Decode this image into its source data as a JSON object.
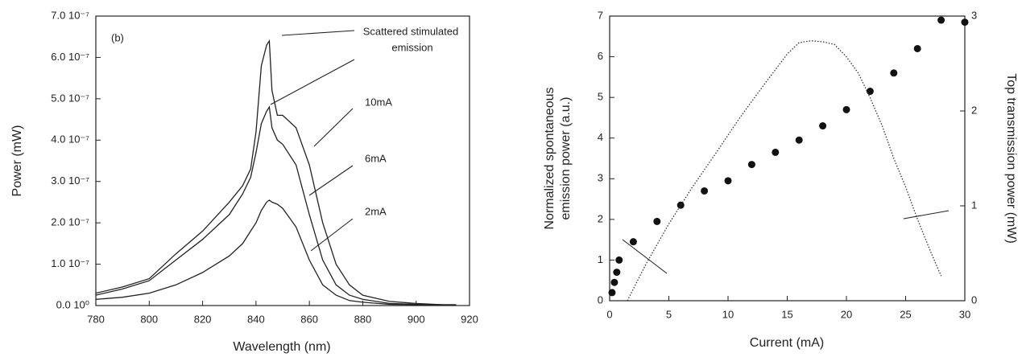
{
  "chart_data": [
    {
      "type": "line",
      "xlabel": "Wavelength (nm)",
      "ylabel": "Power (mW)",
      "annotations": [
        "(b)",
        "Scattered stimulated",
        "emission"
      ],
      "xlim": [
        780,
        920
      ],
      "xticks": [
        780,
        800,
        820,
        840,
        860,
        880,
        900,
        920
      ],
      "ylim": [
        0,
        7e-07
      ],
      "yticks": [
        {
          "value": 0,
          "label": "0.0 10⁰"
        },
        {
          "value": 1e-07,
          "label": "1.0 10⁻⁷"
        },
        {
          "value": 2e-07,
          "label": "2.0 10⁻⁷"
        },
        {
          "value": 3e-07,
          "label": "3.0 10⁻⁷"
        },
        {
          "value": 4e-07,
          "label": "4.0 10⁻⁷"
        },
        {
          "value": 5e-07,
          "label": "5.0 10⁻⁷"
        },
        {
          "value": 6e-07,
          "label": "6.0 10⁻⁷"
        },
        {
          "value": 7e-07,
          "label": "7.0 10⁻⁷"
        }
      ],
      "x": [
        780,
        790,
        800,
        810,
        820,
        830,
        835,
        838,
        840,
        842,
        844,
        845,
        846,
        848,
        850,
        855,
        860,
        865,
        870,
        875,
        880,
        890,
        900,
        910,
        915
      ],
      "series": [
        {
          "name": "10mA",
          "color": "#222222",
          "values": [
            3e-08,
            4.5e-08,
            6.5e-08,
            1.25e-07,
            1.8e-07,
            2.5e-07,
            2.9e-07,
            3.3e-07,
            4.2e-07,
            5.8e-07,
            6.3e-07,
            6.4e-07,
            5.2e-07,
            4.6e-07,
            4.6e-07,
            4.3e-07,
            3.4e-07,
            2e-07,
            1e-07,
            5e-08,
            2.5e-08,
            1e-08,
            5e-09,
            2e-09,
            2e-09
          ]
        },
        {
          "name": "6mA",
          "color": "#222222",
          "values": [
            2.5e-08,
            4e-08,
            6e-08,
            1.1e-07,
            1.6e-07,
            2.2e-07,
            2.7e-07,
            3.1e-07,
            3.7e-07,
            4.4e-07,
            4.7e-07,
            4.8e-07,
            4.3e-07,
            4e-07,
            3.9e-07,
            3.4e-07,
            2.2e-07,
            1.1e-07,
            5e-08,
            2.5e-08,
            1.5e-08,
            5e-09,
            3e-09,
            2e-09,
            2e-09
          ]
        },
        {
          "name": "2mA",
          "color": "#222222",
          "values": [
            1.5e-08,
            2e-08,
            3e-08,
            5e-08,
            8e-08,
            1.2e-07,
            1.5e-07,
            1.8e-07,
            2e-07,
            2.3e-07,
            2.5e-07,
            2.55e-07,
            2.5e-07,
            2.45e-07,
            2.35e-07,
            1.9e-07,
            1.1e-07,
            5e-08,
            2.5e-08,
            1.2e-08,
            8e-09,
            3e-09,
            2e-09,
            1e-09,
            1e-09
          ]
        }
      ]
    },
    {
      "type": "scatter",
      "xlabel": "Current (mA)",
      "ylabel": [
        "Normalized spontaneous",
        "emission power (a.u.)"
      ],
      "y2label": "Top transmission power (mW)",
      "xlim": [
        0,
        30
      ],
      "xticks": [
        0,
        5,
        10,
        15,
        20,
        25,
        30
      ],
      "ylim": [
        0,
        7
      ],
      "yticks": [
        0,
        1,
        2,
        3,
        4,
        5,
        6,
        7
      ],
      "y2lim": [
        0,
        3
      ],
      "y2ticks": [
        0,
        1,
        2,
        3
      ],
      "series": [
        {
          "color": "#111111",
          "x": [
            0.2,
            0.4,
            0.6,
            0.8,
            2,
            4,
            6,
            8,
            10,
            12,
            14,
            16,
            18,
            20,
            22,
            24,
            26,
            28,
            30
          ],
          "values": [
            0.2,
            0.45,
            0.7,
            1.0,
            1.45,
            1.95,
            2.35,
            2.7,
            2.95,
            3.35,
            3.65,
            3.95,
            4.3,
            4.7,
            5.15,
            5.6,
            6.2,
            6.9,
            6.85
          ]
        },
        {
          "type": "line",
          "axis": "y2",
          "linestyle": "dotted",
          "color": "#333333",
          "x": [
            1.5,
            3,
            5,
            7,
            9,
            11,
            13,
            15,
            16,
            17,
            18,
            19,
            20,
            21,
            22,
            23,
            24,
            25,
            26,
            27,
            28
          ],
          "values": [
            0,
            0.37,
            0.81,
            1.2,
            1.56,
            1.93,
            2.27,
            2.6,
            2.72,
            2.74,
            2.73,
            2.7,
            2.57,
            2.4,
            2.14,
            1.85,
            1.5,
            1.2,
            0.86,
            0.55,
            0.26
          ]
        }
      ]
    }
  ]
}
